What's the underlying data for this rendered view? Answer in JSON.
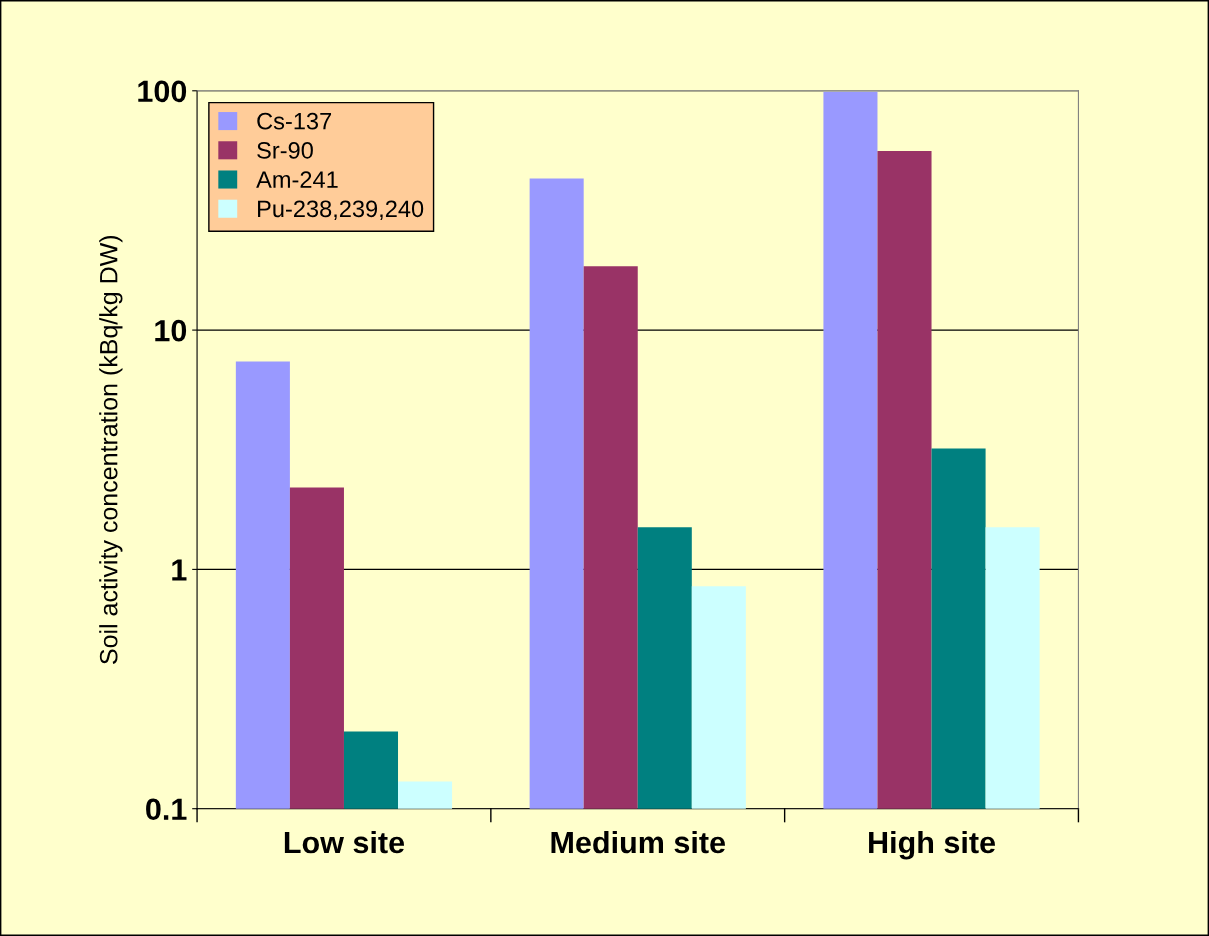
{
  "chart_data": {
    "type": "bar",
    "ylabel": "Soil activity concentration (kBq/kg DW)",
    "categories": [
      "Low site",
      "Medium site",
      "High site"
    ],
    "series": [
      {
        "name": "Cs-137",
        "color": "#9999ff",
        "values": [
          7.4,
          43,
          99
        ]
      },
      {
        "name": "Sr-90",
        "color": "#993366",
        "values": [
          2.2,
          18.5,
          56
        ]
      },
      {
        "name": "Am-241",
        "color": "#008080",
        "values": [
          0.21,
          1.5,
          3.2
        ]
      },
      {
        "name": "Pu-238,239,240",
        "color": "#ccffff",
        "values": [
          0.13,
          0.85,
          1.5
        ]
      }
    ],
    "log": "y",
    "ylim": [
      0.1,
      100
    ],
    "yticks": [
      0.1,
      1,
      10,
      100
    ],
    "grid": "y",
    "legend": "top left"
  }
}
